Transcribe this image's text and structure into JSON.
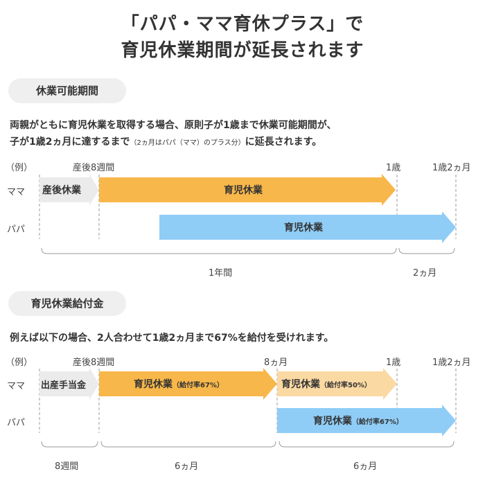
{
  "title_line1": "「パパ・ママ育休プラス」で",
  "title_line2": "育児休業期間が延長されます",
  "section1": {
    "pill": "休業可能期間",
    "text_line1": "両親がともに育児休業を取得する場合、原則子が1歳まで休業可能期間が、",
    "text_line2_main": "子が1歳2ヵ月に達するまで",
    "text_line2_small": "（2ヵ月はパパ（ママ）のプラス分）",
    "text_line2_end": "に延長されます。",
    "example": "（例）",
    "mama": "ママ",
    "papa": "パパ",
    "milestones": [
      "産後8週間",
      "1歳",
      "1歳2ヵ月"
    ],
    "arrows": {
      "mama_postnatal": "産後休業",
      "mama_childcare": "育児休業",
      "papa_childcare": "育児休業"
    },
    "spans": [
      "1年間",
      "2ヵ月"
    ]
  },
  "section2": {
    "pill": "育児休業給付金",
    "text": "例えば以下の場合、2人合わせて1歳2ヵ月まで67%を給付を受けれます。",
    "example": "（例）",
    "mama": "ママ",
    "papa": "パパ",
    "milestones": [
      "産後8週間",
      "8ヵ月",
      "1歳",
      "1歳2ヵ月"
    ],
    "arrows": {
      "mama_benefit": "出産手当金",
      "mama_childcare_1": "育児休業",
      "mama_childcare_1_rate": "（給付率67%）",
      "mama_childcare_2": "育児休業",
      "mama_childcare_2_rate": "（給付率50%）",
      "papa_childcare": "育児休業",
      "papa_childcare_rate": "（給付率67%）"
    },
    "spans": [
      "8週間",
      "6ヵ月",
      "6ヵ月"
    ]
  },
  "colors": {
    "gray_arrow": "#ebebeb",
    "orange_arrow": "#f8b74a",
    "light_orange_arrow": "#fbd9a3",
    "blue_arrow": "#8fcdf6",
    "pill_bg": "#efefef",
    "dashed_line": "#9a9a9a"
  }
}
